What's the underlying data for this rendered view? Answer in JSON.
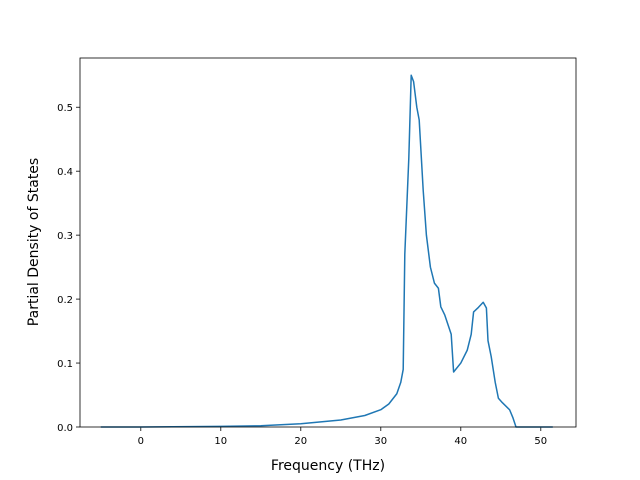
{
  "chart_data": {
    "type": "line",
    "xlabel": "Frequency (THz)",
    "ylabel": "Partial Density of States",
    "x": [
      -5,
      0,
      10,
      15,
      20,
      25,
      28,
      30,
      31,
      32,
      32.5,
      32.8,
      33.0,
      33.3,
      33.5,
      33.8,
      34.1,
      34.5,
      34.8,
      35.3,
      35.7,
      36.2,
      36.7,
      37.2,
      37.5,
      38,
      38.8,
      39.1,
      40,
      40.8,
      41.3,
      41.6,
      42.2,
      42.8,
      43.2,
      43.4,
      43.8,
      44.3,
      44.7,
      45.2,
      46.1,
      46.5,
      46.9,
      48,
      51.5
    ],
    "series": [
      {
        "name": "PDOS",
        "color": "#1f77b4",
        "values": [
          0,
          0,
          0.001,
          0.002,
          0.005,
          0.011,
          0.018,
          0.027,
          0.036,
          0.052,
          0.07,
          0.09,
          0.27,
          0.36,
          0.42,
          0.55,
          0.54,
          0.5,
          0.48,
          0.37,
          0.3,
          0.25,
          0.225,
          0.217,
          0.188,
          0.175,
          0.145,
          0.086,
          0.1,
          0.12,
          0.145,
          0.18,
          0.187,
          0.195,
          0.186,
          0.135,
          0.11,
          0.07,
          0.045,
          0.038,
          0.027,
          0.015,
          0,
          0,
          0
        ]
      }
    ],
    "xlim": [
      -7.6,
      54.4
    ],
    "ylim": [
      0,
      0.577
    ],
    "xticks": [
      0,
      10,
      20,
      30,
      40,
      50
    ],
    "yticks": [
      0.0,
      0.1,
      0.2,
      0.3,
      0.4,
      0.5
    ]
  }
}
